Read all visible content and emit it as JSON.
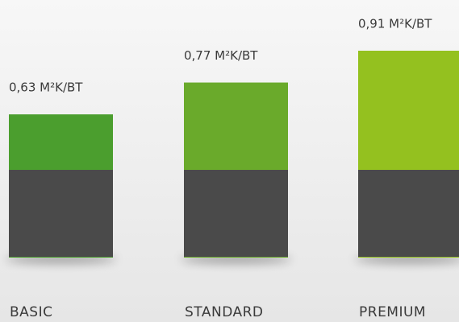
{
  "chart_data": {
    "type": "bar",
    "categories": [
      "BASIC",
      "STANDARD",
      "PREMIUM"
    ],
    "values": [
      0.63,
      0.77,
      0.91
    ],
    "value_labels": [
      "0,63 M²K/BT",
      "0,77 M²K/BT",
      "0,91 M²K/BT"
    ],
    "colors": [
      "#4b9e2e",
      "#6aaa2b",
      "#94c11f"
    ]
  }
}
